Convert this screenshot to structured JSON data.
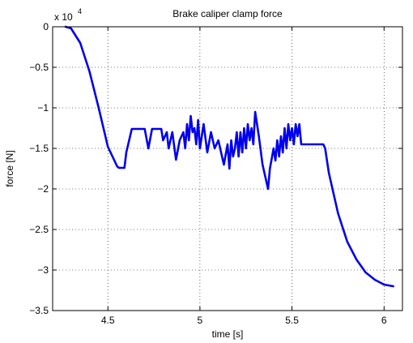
{
  "chart_data": {
    "type": "line",
    "title": "Brake caliper clamp force",
    "xlabel": "time [s]",
    "ylabel": "force [N]",
    "y_multiplier": {
      "base": "x 10",
      "exponent": "4"
    },
    "xlim": [
      4.2,
      6.1
    ],
    "ylim": [
      -3.5,
      0
    ],
    "y_scale_factor": 10000,
    "x_ticks": [
      4.5,
      5,
      5.5,
      6
    ],
    "x_tick_labels": [
      "4.5",
      "5",
      "5.5",
      "6"
    ],
    "y_ticks": [
      0,
      -0.5,
      -1,
      -1.5,
      -2,
      -2.5,
      -3,
      -3.5
    ],
    "y_tick_labels": [
      "0",
      "−0.5",
      "−1",
      "−1.5",
      "−2",
      "−2.5",
      "−3",
      "−3.5"
    ],
    "grid": true,
    "grid_style": "dotted",
    "series": [
      {
        "color": "#0000ee",
        "x": [
          4.27,
          4.3,
          4.35,
          4.4,
          4.45,
          4.5,
          4.55,
          4.56,
          4.59,
          4.6,
          4.63,
          4.64,
          4.68,
          4.7,
          4.72,
          4.74,
          4.76,
          4.79,
          4.8,
          4.82,
          4.83,
          4.85,
          4.87,
          4.89,
          4.91,
          4.92,
          4.93,
          4.94,
          4.95,
          4.96,
          4.97,
          4.98,
          4.99,
          5.0,
          5.02,
          5.04,
          5.06,
          5.08,
          5.1,
          5.12,
          5.13,
          5.15,
          5.16,
          5.17,
          5.18,
          5.19,
          5.2,
          5.21,
          5.22,
          5.23,
          5.24,
          5.25,
          5.26,
          5.27,
          5.28,
          5.29,
          5.3,
          5.32,
          5.34,
          5.37,
          5.38,
          5.4,
          5.41,
          5.42,
          5.43,
          5.44,
          5.45,
          5.46,
          5.47,
          5.48,
          5.49,
          5.5,
          5.51,
          5.52,
          5.53,
          5.54,
          5.55,
          5.58,
          5.62,
          5.67,
          5.68,
          5.7,
          5.75,
          5.8,
          5.85,
          5.9,
          5.95,
          6.0,
          6.05
        ],
        "values": [
          0.0,
          -0.02,
          -0.2,
          -0.55,
          -1.0,
          -1.48,
          -1.72,
          -1.74,
          -1.74,
          -1.55,
          -1.26,
          -1.26,
          -1.26,
          -1.26,
          -1.5,
          -1.26,
          -1.26,
          -1.26,
          -1.4,
          -1.3,
          -1.5,
          -1.3,
          -1.64,
          -1.4,
          -1.3,
          -1.5,
          -1.2,
          -1.4,
          -1.1,
          -1.3,
          -1.25,
          -1.45,
          -1.15,
          -1.5,
          -1.2,
          -1.55,
          -1.3,
          -1.5,
          -1.4,
          -1.6,
          -1.7,
          -1.45,
          -1.75,
          -1.4,
          -1.6,
          -1.5,
          -1.3,
          -1.6,
          -1.3,
          -1.55,
          -1.25,
          -1.5,
          -1.2,
          -1.4,
          -1.25,
          -1.45,
          -1.05,
          -1.35,
          -1.7,
          -2.0,
          -1.75,
          -1.5,
          -1.65,
          -1.4,
          -1.6,
          -1.35,
          -1.55,
          -1.25,
          -1.5,
          -1.2,
          -1.4,
          -1.25,
          -1.45,
          -1.2,
          -1.35,
          -1.2,
          -1.45,
          -1.45,
          -1.45,
          -1.45,
          -1.5,
          -1.8,
          -2.3,
          -2.65,
          -2.87,
          -3.03,
          -3.12,
          -3.18,
          -3.2
        ]
      }
    ]
  }
}
